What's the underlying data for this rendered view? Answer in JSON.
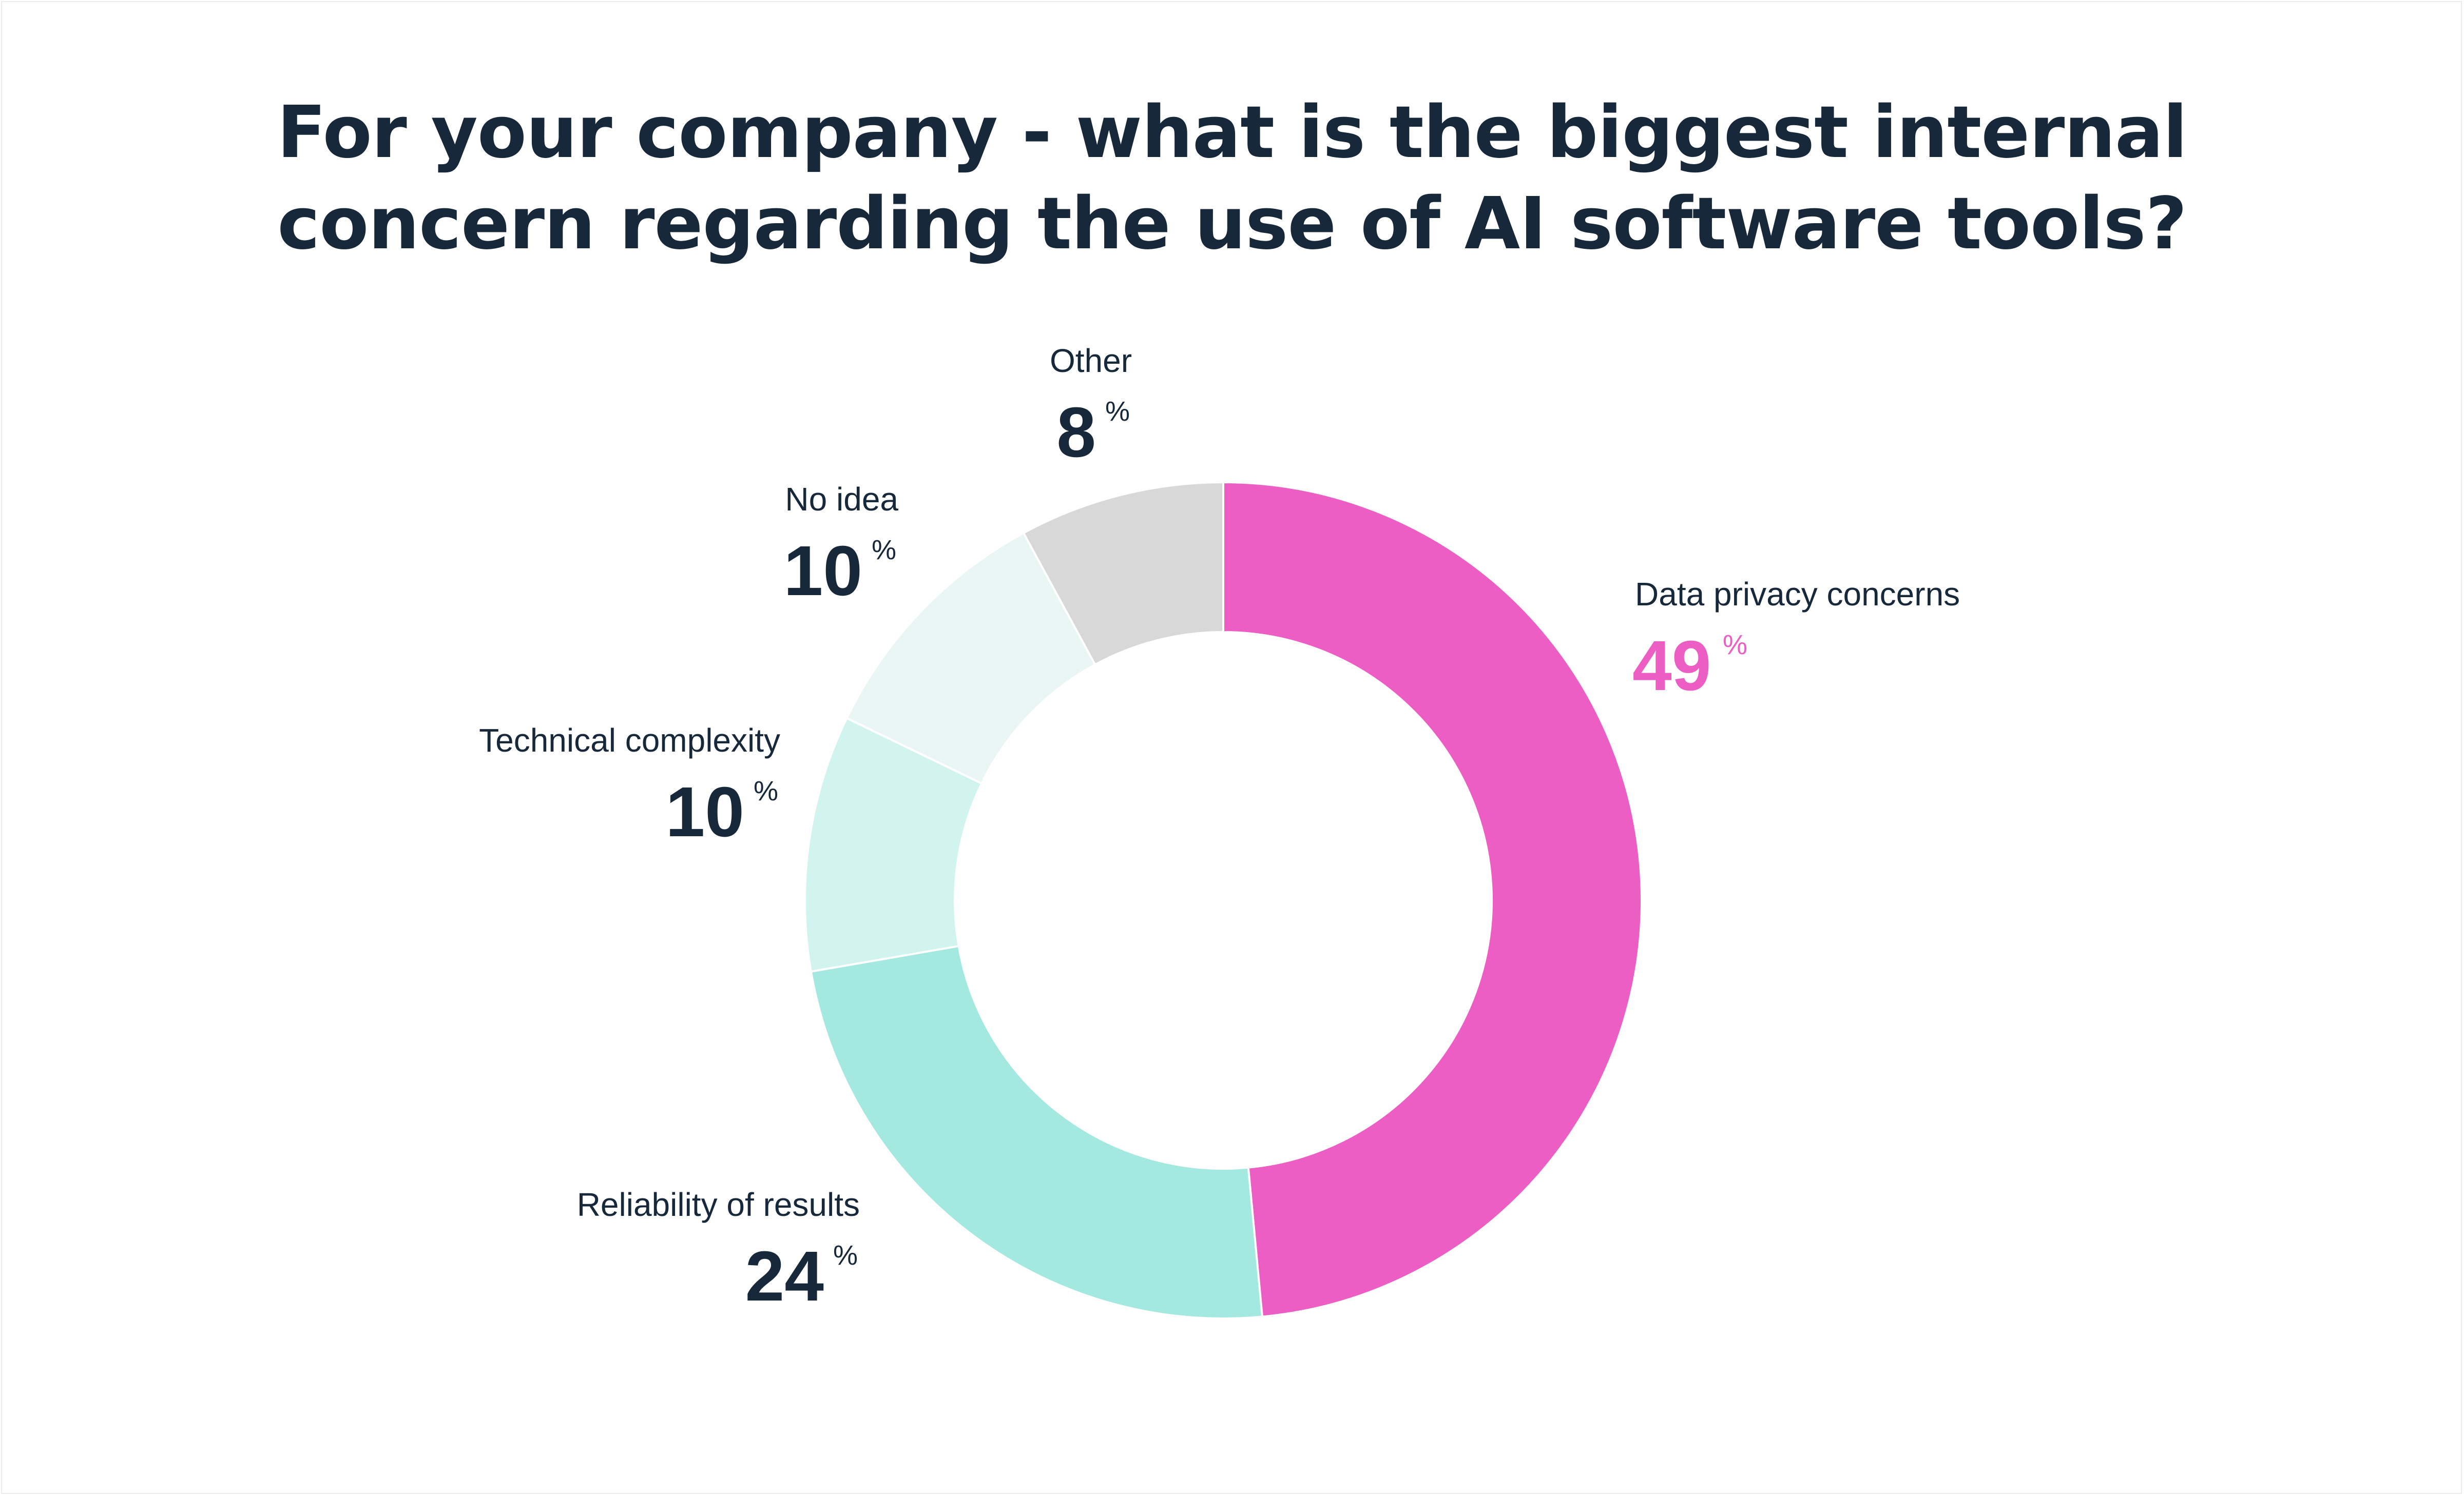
{
  "title_lines": [
    "For your company - what is the biggest internal",
    "concern regarding the use of AI software tools?"
  ],
  "chart_data": {
    "type": "pie",
    "variant": "donut",
    "title": "For your company - what is the biggest internal concern regarding the use of AI software tools?",
    "unit": "%",
    "start": "12 o'clock",
    "direction": "clockwise",
    "slices": [
      {
        "label": "Data privacy concerns",
        "value": 49,
        "color": "#ec5ec4",
        "value_color": "#ec5ec4"
      },
      {
        "label": "Reliability of results",
        "value": 24,
        "color": "#a3e9df",
        "value_color": "#17283a"
      },
      {
        "label": "Technical complexity",
        "value": 10,
        "color": "#d1f4ee",
        "value_color": "#17283a"
      },
      {
        "label": "No idea",
        "value": 10,
        "color": "#e9f6f3",
        "value_color": "#17283a"
      },
      {
        "label": "Other",
        "value": 8,
        "color": "#d8d8d8",
        "value_color": "#17283a"
      }
    ]
  },
  "colors": {
    "text_dark": "#17283a",
    "accent": "#ec5ec4",
    "divider": "#ffffff"
  }
}
